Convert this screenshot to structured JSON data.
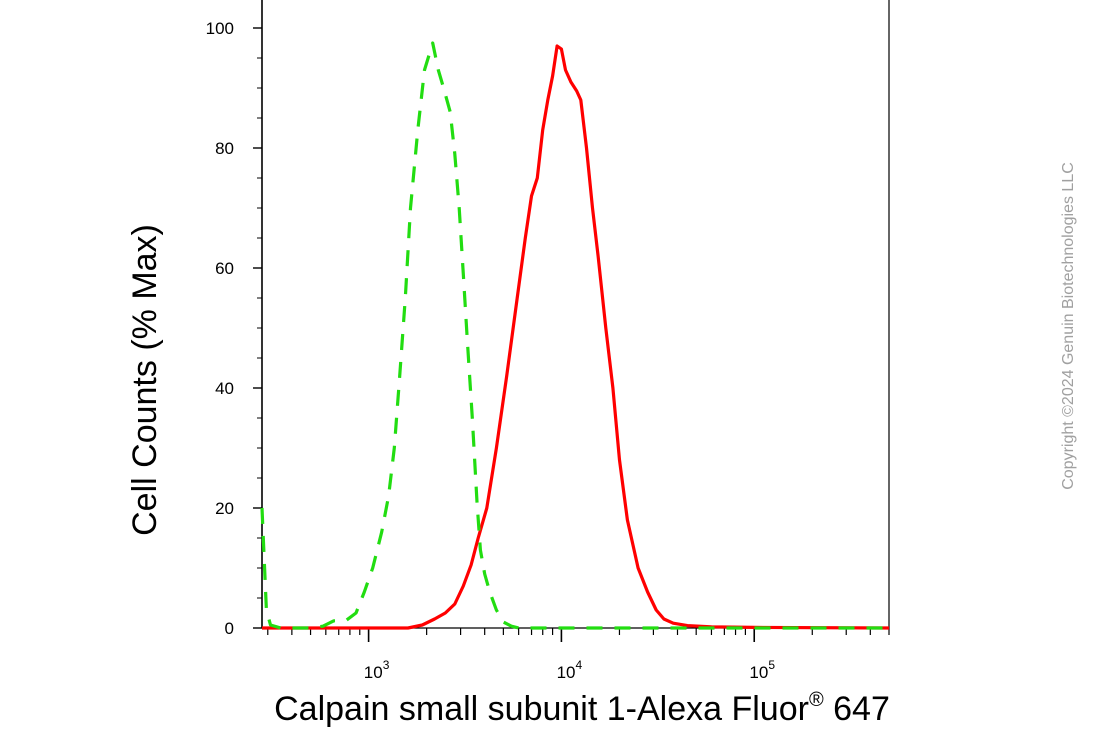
{
  "chart_data": {
    "type": "line",
    "xscale": "log",
    "xlim": [
      280,
      500000
    ],
    "ylim": [
      0,
      100
    ],
    "xlabel_main": "Calpain small subunit 1-Alexa Fluor",
    "xlabel_sup": "®",
    "xlabel_tail": " 647",
    "ylabel": "Cell Counts (% Max)",
    "y_ticks": [
      0,
      20,
      40,
      60,
      80,
      100
    ],
    "y_tick_labels": [
      "0",
      "20",
      "40",
      "60",
      "80",
      "100"
    ],
    "x_ticks": [
      1000,
      10000,
      100000
    ],
    "x_tick_labels": [
      {
        "base": "10",
        "exp": "3"
      },
      {
        "base": "10",
        "exp": "4"
      },
      {
        "base": "10",
        "exp": "5"
      }
    ],
    "grid": false,
    "legend": "none",
    "series": [
      {
        "color": "#ff0000",
        "style": "solid",
        "points": [
          [
            280,
            0
          ],
          [
            1600,
            0
          ],
          [
            1900,
            0.5
          ],
          [
            2200,
            1.5
          ],
          [
            2500,
            2.5
          ],
          [
            2800,
            4
          ],
          [
            3100,
            7
          ],
          [
            3400,
            10.5
          ],
          [
            3700,
            15
          ],
          [
            4100,
            20
          ],
          [
            4600,
            30
          ],
          [
            5200,
            42
          ],
          [
            5900,
            55
          ],
          [
            6500,
            65
          ],
          [
            7000,
            72
          ],
          [
            7500,
            75
          ],
          [
            8000,
            83
          ],
          [
            8500,
            88
          ],
          [
            9000,
            92
          ],
          [
            9500,
            97
          ],
          [
            10000,
            96.5
          ],
          [
            10500,
            93
          ],
          [
            11200,
            91
          ],
          [
            12000,
            89.5
          ],
          [
            12600,
            88
          ],
          [
            13500,
            80
          ],
          [
            14500,
            70
          ],
          [
            15500,
            62
          ],
          [
            17000,
            50
          ],
          [
            18500,
            40
          ],
          [
            20000,
            28
          ],
          [
            22000,
            18
          ],
          [
            25000,
            10
          ],
          [
            28000,
            6
          ],
          [
            31000,
            3
          ],
          [
            34000,
            1.5
          ],
          [
            38000,
            0.8
          ],
          [
            45000,
            0.4
          ],
          [
            60000,
            0.2
          ],
          [
            100000,
            0.1
          ],
          [
            500000,
            0
          ]
        ]
      },
      {
        "color": "#22dd11",
        "style": "dashed",
        "points": [
          [
            280,
            20
          ],
          [
            295,
            3
          ],
          [
            310,
            0.5
          ],
          [
            350,
            0
          ],
          [
            500,
            0
          ],
          [
            580,
            0.3
          ],
          [
            660,
            1.2
          ],
          [
            760,
            1.2
          ],
          [
            860,
            2.5
          ],
          [
            950,
            6
          ],
          [
            1050,
            10
          ],
          [
            1170,
            16
          ],
          [
            1270,
            22
          ],
          [
            1360,
            30
          ],
          [
            1450,
            42
          ],
          [
            1550,
            55
          ],
          [
            1650,
            70
          ],
          [
            1800,
            83
          ],
          [
            1950,
            93
          ],
          [
            2150,
            97.5
          ],
          [
            2300,
            93
          ],
          [
            2450,
            90
          ],
          [
            2650,
            86
          ],
          [
            2800,
            79
          ],
          [
            2950,
            70
          ],
          [
            3100,
            59
          ],
          [
            3250,
            48
          ],
          [
            3450,
            35
          ],
          [
            3650,
            21
          ],
          [
            3800,
            13
          ],
          [
            4000,
            9
          ],
          [
            4250,
            6
          ],
          [
            4600,
            3
          ],
          [
            5000,
            1
          ],
          [
            5500,
            0.3
          ],
          [
            6000,
            0
          ],
          [
            500000,
            0
          ]
        ]
      }
    ]
  },
  "copyright": "Copyright ©2024 Genuin Biotechnologies LLC"
}
